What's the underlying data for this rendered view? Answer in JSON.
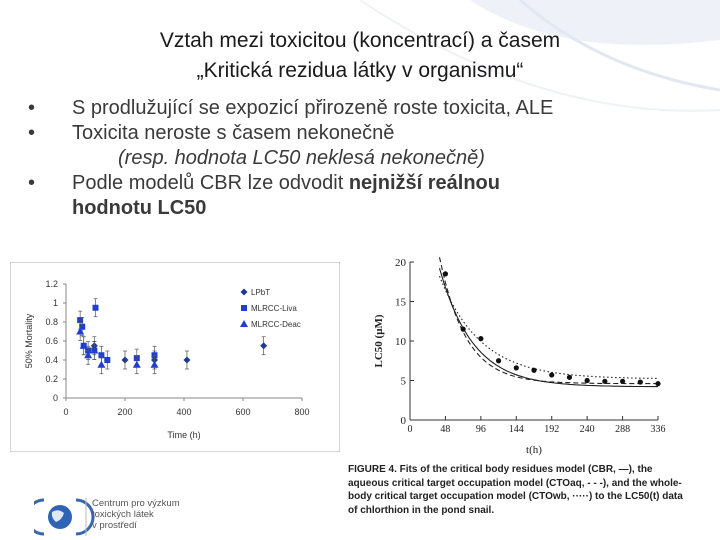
{
  "title": {
    "line1": "Vztah mezi toxicitou (koncentrací) a časem",
    "line2": "„Kritická rezidua látky v organismu“"
  },
  "bullets": {
    "b1": "S prodlužující se expozicí přirozeně roste toxicita, ALE",
    "b2": "Toxicita neroste s časem nekonečně",
    "b2_sub": "(resp. hodnota LC50 neklesá nekonečně)",
    "b3_pre": "Podle modelů CBR lze odvodit ",
    "b3_bold": "nejnižší reálnou",
    "b3_line2": "hodnotu LC50",
    "marker": "•"
  },
  "chart_data": [
    {
      "type": "scatter",
      "xlabel": "Time (h)",
      "ylabel": "50% Mortality",
      "xlim": [
        0,
        800
      ],
      "ylim": [
        0,
        1.2
      ],
      "xticks": [
        "0",
        "200",
        "400",
        "600",
        "800"
      ],
      "yticks": [
        "0",
        "0.2",
        "0.4",
        "0.6",
        "0.8",
        "1",
        "1.2"
      ],
      "legend_position": "top-right",
      "series": [
        {
          "name": "LPbT",
          "marker": "diamond",
          "color": "#1f3a93",
          "points": [
            [
              96,
              0.55
            ],
            [
              200,
              0.4
            ],
            [
              300,
              0.4
            ],
            [
              410,
              0.4
            ],
            [
              670,
              0.55
            ]
          ]
        },
        {
          "name": "MLRCC-Liva",
          "marker": "square",
          "color": "#1f3fd0",
          "points": [
            [
              48,
              0.82
            ],
            [
              55,
              0.75
            ],
            [
              60,
              0.55
            ],
            [
              75,
              0.5
            ],
            [
              96,
              0.5
            ],
            [
              100,
              0.95
            ],
            [
              120,
              0.45
            ],
            [
              140,
              0.4
            ],
            [
              240,
              0.42
            ],
            [
              300,
              0.45
            ]
          ]
        },
        {
          "name": "MLRCC-Deac",
          "marker": "triangle",
          "color": "#1f3fd0",
          "points": [
            [
              48,
              0.7
            ],
            [
              60,
              0.55
            ],
            [
              75,
              0.45
            ],
            [
              96,
              0.5
            ],
            [
              120,
              0.35
            ],
            [
              240,
              0.35
            ],
            [
              300,
              0.35
            ]
          ]
        }
      ]
    },
    {
      "type": "scatter",
      "xlabel": "t(h)",
      "ylabel": "LC50 (μM)",
      "xlim": [
        0,
        336
      ],
      "ylim": [
        0,
        20
      ],
      "xticks": [
        "0",
        "48",
        "96",
        "144",
        "192",
        "240",
        "288",
        "336"
      ],
      "yticks": [
        "0",
        "5",
        "10",
        "15",
        "20"
      ],
      "points": [
        [
          48,
          18.5
        ],
        [
          72,
          11.5
        ],
        [
          96,
          10.3
        ],
        [
          120,
          7.5
        ],
        [
          144,
          6.6
        ],
        [
          168,
          6.3
        ],
        [
          192,
          5.7
        ],
        [
          216,
          5.4
        ],
        [
          240,
          5.0
        ],
        [
          264,
          4.9
        ],
        [
          288,
          4.9
        ],
        [
          312,
          4.8
        ],
        [
          336,
          4.6
        ]
      ],
      "curves": [
        {
          "name": "CBR",
          "style": "solid"
        },
        {
          "name": "CTOaq",
          "style": "dashed"
        },
        {
          "name": "CTOwb",
          "style": "dotted"
        }
      ]
    }
  ],
  "caption": {
    "l1": "FIGURE 4.  Fits of the critical body residues model (CBR, —), the",
    "l2": "aqueous critical target occupation model (CTOaq, - - -), and the whole-",
    "l3": "body critical target occupation model (CTOwb, ·····) to the LC50(t) data",
    "l4": "of chlorthion in the pond snail."
  },
  "logo": {
    "l1": "Centrum pro výzkum",
    "l2": "toxických látek",
    "l3": "v prostředí"
  }
}
